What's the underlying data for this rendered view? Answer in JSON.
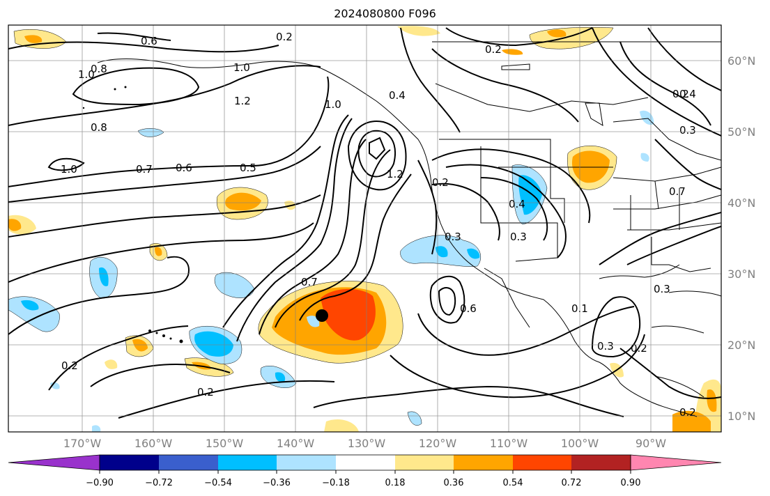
{
  "title": "2024080800 F096",
  "map": {
    "lon_labels": [
      "170°W",
      "160°W",
      "150°W",
      "140°W",
      "130°W",
      "120°W",
      "110°W",
      "100°W",
      "90°W"
    ],
    "lat_labels": [
      "60°N",
      "50°N",
      "40°N",
      "30°N",
      "20°N",
      "10°N"
    ],
    "contour_labels": [
      {
        "text": "0.2"
      },
      {
        "text": "0.6"
      },
      {
        "text": "1.0"
      },
      {
        "text": "0.8"
      },
      {
        "text": "1.0"
      },
      {
        "text": "1.2"
      },
      {
        "text": "0.8"
      },
      {
        "text": "1.0"
      },
      {
        "text": "0.7"
      },
      {
        "text": "0.6"
      },
      {
        "text": "0.5"
      },
      {
        "text": "1.0"
      },
      {
        "text": "1.2"
      },
      {
        "text": "0.4"
      },
      {
        "text": "0.2"
      },
      {
        "text": "0.4"
      },
      {
        "text": "0.3"
      },
      {
        "text": "0.3"
      },
      {
        "text": "0.7"
      },
      {
        "text": "0.6"
      },
      {
        "text": "0.2"
      },
      {
        "text": "0.2"
      },
      {
        "text": "0.4"
      },
      {
        "text": "0.3"
      },
      {
        "text": "0.7"
      },
      {
        "text": "0.3"
      },
      {
        "text": "0.1"
      },
      {
        "text": "0.3"
      },
      {
        "text": "0.2"
      },
      {
        "text": "0.2"
      },
      {
        "text": "0.2"
      },
      {
        "text": "0.2"
      }
    ]
  },
  "colorbar": {
    "ticks": [
      "−0.90",
      "−0.72",
      "−0.54",
      "−0.36",
      "−0.18",
      "0.18",
      "0.36",
      "0.54",
      "0.72",
      "0.90"
    ],
    "colors": [
      "#9932cc",
      "#00008b",
      "#3a5fcd",
      "#00bfff",
      "#aee3ff",
      "#ffffff",
      "#ffe88c",
      "#ffa500",
      "#ff4500",
      "#b22222",
      "#ff86b0"
    ]
  },
  "marker": {
    "label": "storm center"
  }
}
